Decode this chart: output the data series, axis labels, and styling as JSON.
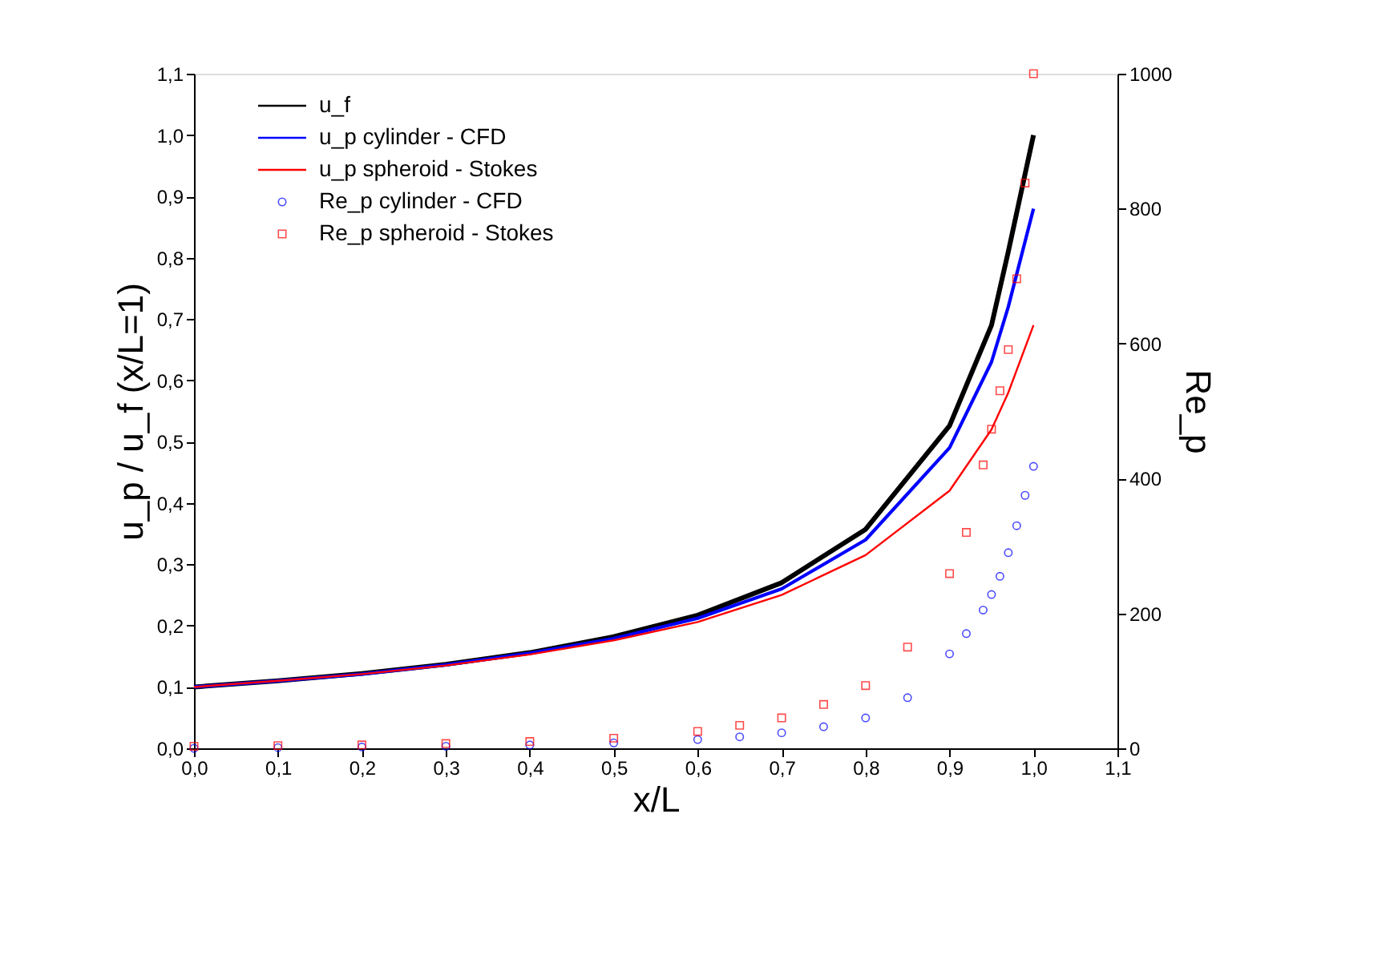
{
  "chart_data": {
    "type": "line",
    "xlabel": "x/L",
    "ylabel": "u_p / u_f (x/L=1)",
    "y2label": "Re_p",
    "xlim": [
      0,
      1.1
    ],
    "ylim": [
      0,
      1.1
    ],
    "y2lim": [
      0,
      1000
    ],
    "xticks": [
      {
        "value": 0,
        "label": "0,0"
      },
      {
        "value": 0.1,
        "label": "0,1"
      },
      {
        "value": 0.2,
        "label": "0,2"
      },
      {
        "value": 0.3,
        "label": "0,3"
      },
      {
        "value": 0.4,
        "label": "0,4"
      },
      {
        "value": 0.5,
        "label": "0,5"
      },
      {
        "value": 0.6,
        "label": "0,6"
      },
      {
        "value": 0.7,
        "label": "0,7"
      },
      {
        "value": 0.8,
        "label": "0,8"
      },
      {
        "value": 0.9,
        "label": "0,9"
      },
      {
        "value": 1.0,
        "label": "1,0"
      },
      {
        "value": 1.1,
        "label": "1,1"
      }
    ],
    "yticks": [
      {
        "value": 0,
        "label": "0,0"
      },
      {
        "value": 0.1,
        "label": "0,1"
      },
      {
        "value": 0.2,
        "label": "0,2"
      },
      {
        "value": 0.3,
        "label": "0,3"
      },
      {
        "value": 0.4,
        "label": "0,4"
      },
      {
        "value": 0.5,
        "label": "0,5"
      },
      {
        "value": 0.6,
        "label": "0,6"
      },
      {
        "value": 0.7,
        "label": "0,7"
      },
      {
        "value": 0.8,
        "label": "0,8"
      },
      {
        "value": 0.9,
        "label": "0,9"
      },
      {
        "value": 1.0,
        "label": "1,0"
      },
      {
        "value": 1.1,
        "label": "1,1"
      }
    ],
    "y2ticks": [
      0,
      200,
      400,
      600,
      800,
      1000
    ],
    "grid": false,
    "legend": "top left",
    "series": [
      {
        "name": "u_f",
        "color": "#000000",
        "x": [
          0,
          0.1,
          0.2,
          0.3,
          0.4,
          0.5,
          0.6,
          0.7,
          0.8,
          0.9,
          0.95,
          0.97,
          1.0
        ],
        "values": [
          0.1,
          0.11,
          0.122,
          0.137,
          0.156,
          0.182,
          0.217,
          0.27,
          0.357,
          0.526,
          0.69,
          0.81,
          1.0
        ]
      },
      {
        "name": "u_p cylinder - CFD",
        "color": "#0000ff",
        "x": [
          0,
          0.1,
          0.2,
          0.3,
          0.4,
          0.5,
          0.6,
          0.7,
          0.8,
          0.9,
          0.95,
          0.97,
          1.0
        ],
        "values": [
          0.1,
          0.11,
          0.121,
          0.136,
          0.155,
          0.179,
          0.212,
          0.26,
          0.34,
          0.49,
          0.63,
          0.72,
          0.88
        ]
      },
      {
        "name": "u_p spheroid - Stokes",
        "color": "#ff0000",
        "x": [
          0,
          0.1,
          0.2,
          0.3,
          0.4,
          0.5,
          0.6,
          0.7,
          0.8,
          0.9,
          0.95,
          0.97,
          1.0
        ],
        "values": [
          0.1,
          0.11,
          0.121,
          0.135,
          0.153,
          0.176,
          0.206,
          0.25,
          0.315,
          0.42,
          0.52,
          0.58,
          0.69
        ]
      },
      {
        "name": "Re_p cylinder - CFD",
        "type": "scatter",
        "marker": "circle",
        "axis": "y2",
        "color": "#0000ff",
        "x": [
          0,
          0.1,
          0.2,
          0.3,
          0.4,
          0.5,
          0.6,
          0.65,
          0.7,
          0.75,
          0.8,
          0.85,
          0.9,
          0.92,
          0.94,
          0.95,
          0.96,
          0.97,
          0.98,
          0.99,
          1.0
        ],
        "values": [
          0,
          1,
          2,
          3,
          5,
          8,
          13,
          17,
          23,
          32,
          45,
          75,
          140,
          170,
          205,
          228,
          255,
          290,
          330,
          375,
          418
        ]
      },
      {
        "name": "Re_p spheroid - Stokes",
        "type": "scatter",
        "marker": "square",
        "axis": "y2",
        "color": "#ff0000",
        "x": [
          0,
          0.1,
          0.2,
          0.3,
          0.4,
          0.5,
          0.6,
          0.65,
          0.7,
          0.75,
          0.8,
          0.85,
          0.9,
          0.92,
          0.94,
          0.95,
          0.96,
          0.97,
          0.98,
          0.99,
          1.0
        ],
        "values": [
          3,
          4,
          5,
          7,
          10,
          15,
          25,
          34,
          45,
          65,
          93,
          150,
          259,
          320,
          420,
          473,
          530,
          591,
          696,
          838,
          1000
        ]
      }
    ]
  }
}
